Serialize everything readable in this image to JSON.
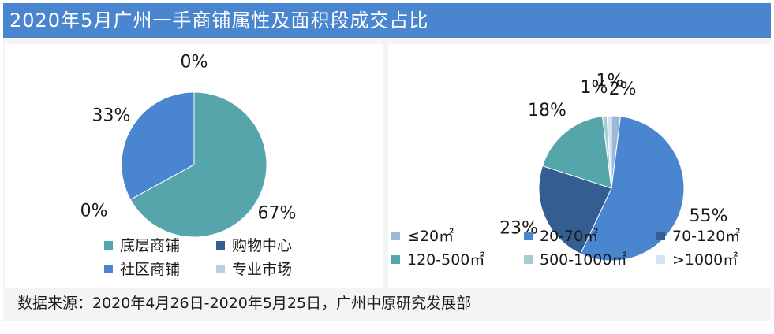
{
  "title": "2020年5月广州一手商铺属性及面积段成交占比",
  "source": "数据来源：2020年4月26日-2020年5月25日，广州中原研究发展部",
  "chart_data": [
    {
      "type": "pie",
      "slices": [
        {
          "name": "底层商铺",
          "value": 67,
          "label": "67%",
          "color": "#55a5ab"
        },
        {
          "name": "购物中心",
          "value": 0,
          "label": "0%",
          "color": "#345e91"
        },
        {
          "name": "社区商铺",
          "value": 33,
          "label": "33%",
          "color": "#4a86d0"
        },
        {
          "name": "专业市场",
          "value": 0,
          "label": "0%",
          "color": "#b7d0ea"
        }
      ],
      "legend_position": "bottom"
    },
    {
      "type": "pie",
      "slices": [
        {
          "name": "≤20㎡",
          "value": 2,
          "label": "2%",
          "color": "#9db7d9"
        },
        {
          "name": "20-70㎡",
          "value": 55,
          "label": "55%",
          "color": "#4a86d0"
        },
        {
          "name": "70-120㎡",
          "value": 23,
          "label": "23%",
          "color": "#345e91"
        },
        {
          "name": "120-500㎡",
          "value": 18,
          "label": "18%",
          "color": "#55a5ab"
        },
        {
          "name": "500-1000㎡",
          "value": 1,
          "label": "1%",
          "color": "#a6cdd1"
        },
        {
          "name": ">1000㎡",
          "value": 1,
          "label": "1%",
          "color": "#d6e2ef"
        }
      ],
      "legend_position": "bottom"
    }
  ]
}
